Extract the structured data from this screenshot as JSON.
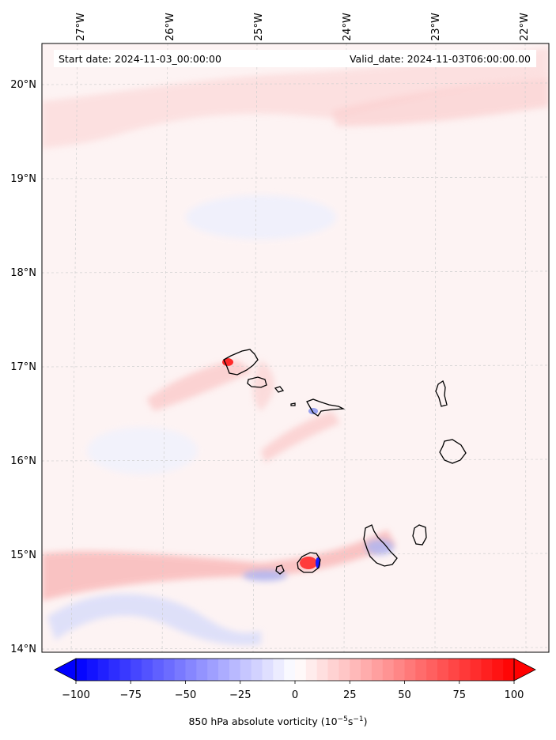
{
  "header": {
    "start_label": "Start date: 2024-11-03_00:00:00",
    "valid_label": "Valid_date: 2024-11-03T06:00:00.00"
  },
  "axes": {
    "lon_ticks": [
      "27°W",
      "26°W",
      "25°W",
      "24°W",
      "23°W",
      "22°W"
    ],
    "lat_ticks": [
      "20°N",
      "19°N",
      "18°N",
      "17°N",
      "16°N",
      "15°N",
      "14°N"
    ]
  },
  "colorbar": {
    "min": -100,
    "max": 100,
    "ticks": [
      "−100",
      "−75",
      "−50",
      "−25",
      "0",
      "25",
      "50",
      "75",
      "100"
    ],
    "title_main": "850 hPa absolute vorticity (10",
    "title_exp1": "−5",
    "title_mid": "s",
    "title_exp2": "−1",
    "title_end": ")",
    "color_neg": "#0000ff",
    "color_zero": "#ffffff",
    "color_pos": "#ff0000"
  },
  "map": {
    "background_color": "#fdf3f3",
    "grid": true,
    "coastline_color": "#000000"
  }
}
